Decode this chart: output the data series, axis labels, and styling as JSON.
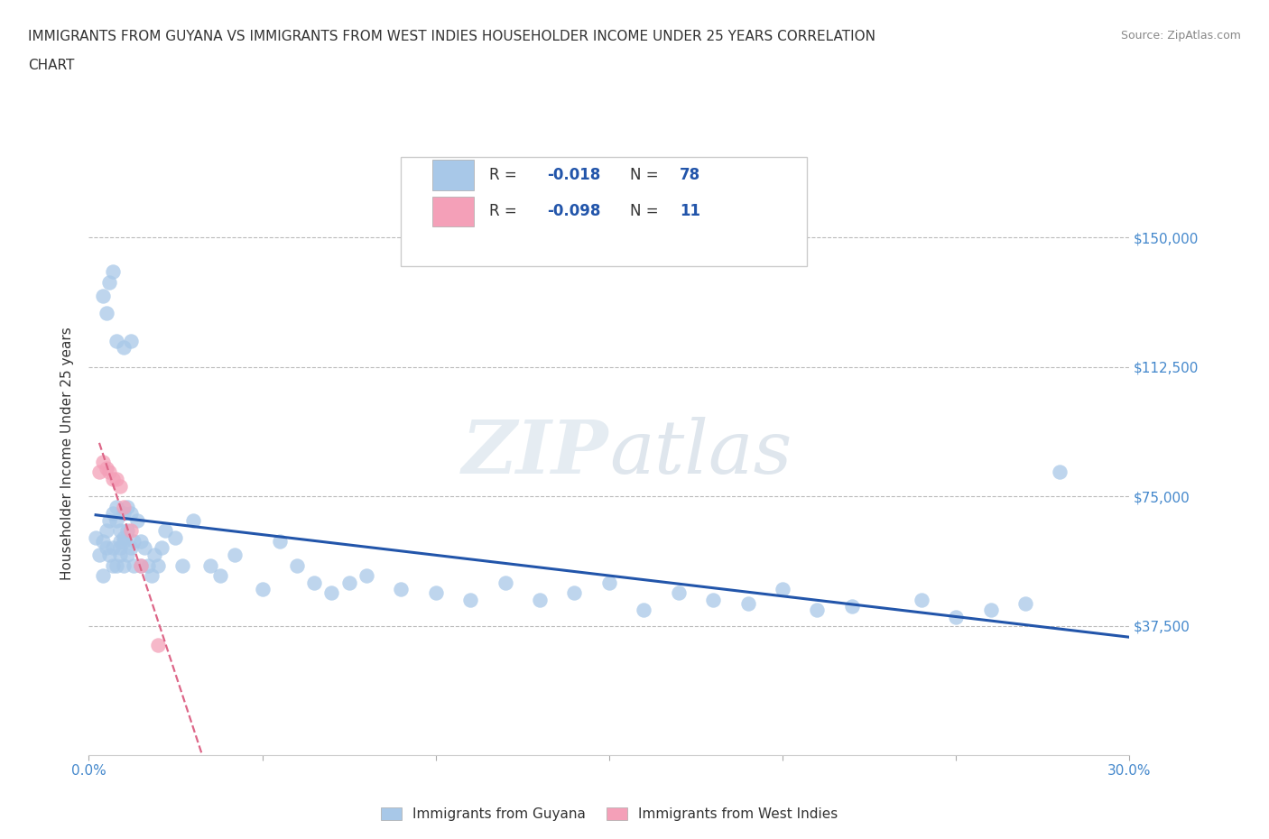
{
  "title_line1": "IMMIGRANTS FROM GUYANA VS IMMIGRANTS FROM WEST INDIES HOUSEHOLDER INCOME UNDER 25 YEARS CORRELATION",
  "title_line2": "CHART",
  "source": "Source: ZipAtlas.com",
  "ylabel": "Householder Income Under 25 years",
  "xlim": [
    0.0,
    0.3
  ],
  "ylim": [
    0,
    175000
  ],
  "yticks": [
    37500,
    75000,
    112500,
    150000
  ],
  "ytick_labels": [
    "$37,500",
    "$75,000",
    "$112,500",
    "$150,000"
  ],
  "xticks": [
    0.0,
    0.05,
    0.1,
    0.15,
    0.2,
    0.25,
    0.3
  ],
  "xtick_labels": [
    "0.0%",
    "",
    "",
    "",
    "",
    "",
    "30.0%"
  ],
  "guyana_R": -0.018,
  "guyana_N": 78,
  "westindies_R": -0.098,
  "westindies_N": 11,
  "guyana_color": "#a8c8e8",
  "westindies_color": "#f4a0b8",
  "guyana_line_color": "#2255aa",
  "westindies_line_color": "#dd6688",
  "legend_label_guyana": "Immigrants from Guyana",
  "legend_label_westindies": "Immigrants from West Indies",
  "watermark": "ZIPatlas",
  "background_color": "#ffffff",
  "grid_color": "#bbbbbb",
  "title_color": "#333333",
  "axis_label_color": "#4488cc",
  "guyana_x": [
    0.002,
    0.003,
    0.004,
    0.004,
    0.005,
    0.005,
    0.006,
    0.006,
    0.007,
    0.007,
    0.007,
    0.008,
    0.008,
    0.008,
    0.009,
    0.009,
    0.009,
    0.009,
    0.01,
    0.01,
    0.01,
    0.01,
    0.011,
    0.011,
    0.011,
    0.012,
    0.012,
    0.013,
    0.013,
    0.014,
    0.015,
    0.015,
    0.016,
    0.017,
    0.018,
    0.019,
    0.02,
    0.021,
    0.022,
    0.025,
    0.027,
    0.03,
    0.035,
    0.038,
    0.042,
    0.05,
    0.055,
    0.06,
    0.065,
    0.07,
    0.075,
    0.08,
    0.09,
    0.1,
    0.11,
    0.12,
    0.13,
    0.14,
    0.15,
    0.16,
    0.17,
    0.18,
    0.19,
    0.2,
    0.21,
    0.22,
    0.24,
    0.25,
    0.26,
    0.27,
    0.004,
    0.005,
    0.006,
    0.007,
    0.008,
    0.01,
    0.012,
    0.28
  ],
  "guyana_y": [
    63000,
    58000,
    52000,
    62000,
    60000,
    65000,
    68000,
    58000,
    70000,
    60000,
    55000,
    68000,
    55000,
    72000,
    62000,
    58000,
    65000,
    60000,
    70000,
    63000,
    55000,
    62000,
    72000,
    58000,
    65000,
    60000,
    70000,
    55000,
    62000,
    68000,
    55000,
    62000,
    60000,
    55000,
    52000,
    58000,
    55000,
    60000,
    65000,
    63000,
    55000,
    68000,
    55000,
    52000,
    58000,
    48000,
    62000,
    55000,
    50000,
    47000,
    50000,
    52000,
    48000,
    47000,
    45000,
    50000,
    45000,
    47000,
    50000,
    42000,
    47000,
    45000,
    44000,
    48000,
    42000,
    43000,
    45000,
    40000,
    42000,
    44000,
    133000,
    128000,
    137000,
    140000,
    120000,
    118000,
    120000,
    82000
  ],
  "westindies_x": [
    0.003,
    0.004,
    0.005,
    0.006,
    0.007,
    0.008,
    0.009,
    0.01,
    0.012,
    0.015,
    0.02
  ],
  "westindies_y": [
    82000,
    85000,
    83000,
    82000,
    80000,
    80000,
    78000,
    72000,
    65000,
    55000,
    32000
  ]
}
